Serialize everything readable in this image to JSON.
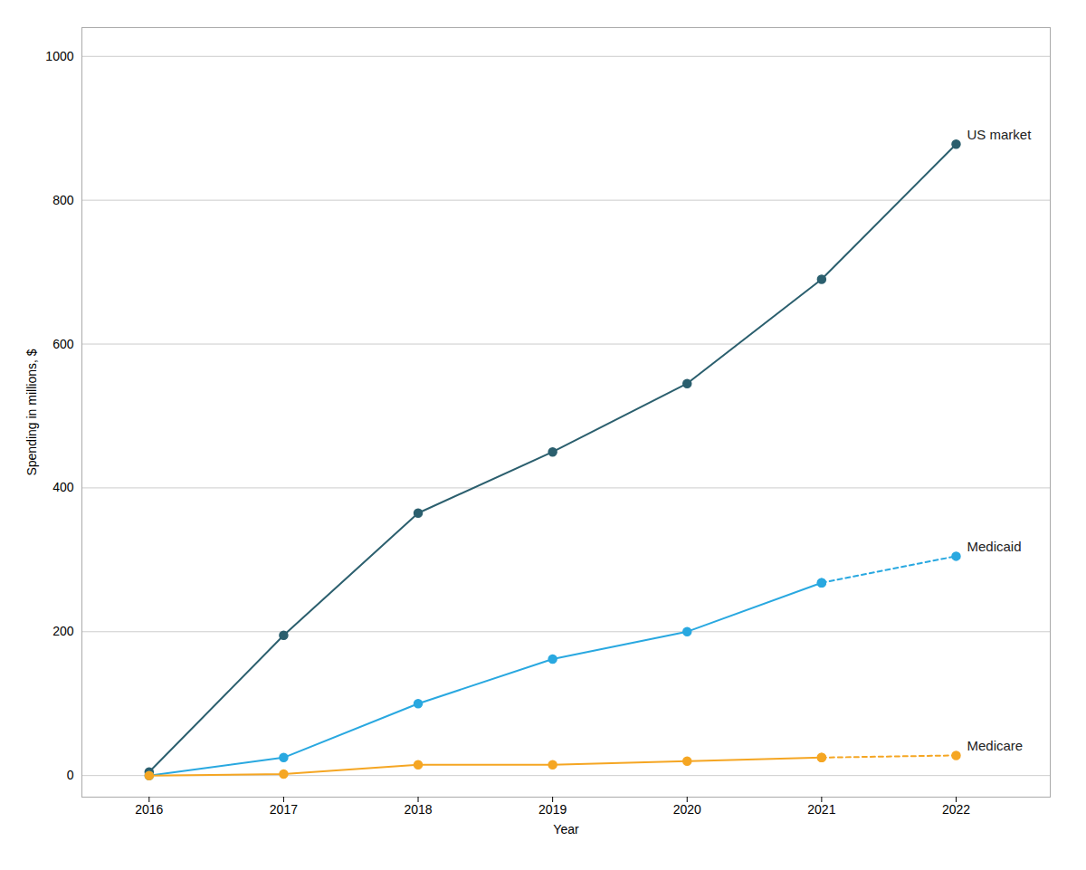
{
  "chart_data": {
    "type": "line",
    "x": [
      2016,
      2017,
      2018,
      2019,
      2020,
      2021,
      2022
    ],
    "series": [
      {
        "name": "US market",
        "color": "#2b5f6e",
        "marker": "circle",
        "line_style": "solid",
        "values": [
          5,
          195,
          365,
          450,
          545,
          690,
          878
        ]
      },
      {
        "name": "Medicaid",
        "color": "#29a8e0",
        "marker": "circle",
        "line_style": "solid",
        "values": [
          0,
          25,
          100,
          162,
          200,
          268,
          null
        ]
      },
      {
        "name": "Medicaid",
        "color": "#29a8e0",
        "marker": "circle",
        "line_style": "dashed",
        "values": [
          null,
          null,
          null,
          null,
          null,
          268,
          305
        ]
      },
      {
        "name": "Medicare",
        "color": "#f5a623",
        "marker": "circle",
        "line_style": "solid",
        "values": [
          0,
          2,
          15,
          15,
          20,
          25,
          null
        ]
      },
      {
        "name": "Medicare",
        "color": "#f5a623",
        "marker": "circle",
        "line_style": "dashed",
        "values": [
          null,
          null,
          null,
          null,
          null,
          25,
          28
        ]
      }
    ],
    "xlabel": "Year",
    "ylabel": "Spending in millions, $",
    "xlim": [
      2015.5,
      2022.7
    ],
    "xticks": [
      2016,
      2017,
      2018,
      2019,
      2020,
      2021,
      2022
    ],
    "ylim": [
      -30,
      1040
    ],
    "yticks": [
      0,
      200,
      400,
      600,
      800,
      1000
    ],
    "grid": true
  }
}
